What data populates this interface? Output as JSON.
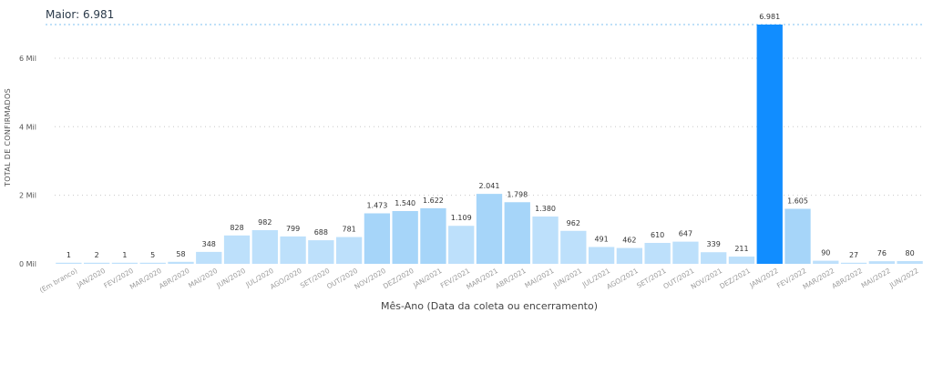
{
  "max_reference": {
    "label": "Maior: 6.981",
    "value": 6981
  },
  "colors": {
    "bar_normal": "#bde0fb",
    "bar_high": "#a6d5f9",
    "bar_max": "#118dff",
    "ref_line": "#bfe0f8"
  },
  "chart_data": {
    "type": "bar",
    "title": "",
    "xlabel": "Mês-Ano (Data da coleta ou encerramento)",
    "ylabel": "TOTAL DE CONFIRMADOS",
    "ylim": [
      0,
      7000
    ],
    "yticks": [
      {
        "value": 0,
        "label": "0 Mil"
      },
      {
        "value": 2000,
        "label": "2 Mil"
      },
      {
        "value": 4000,
        "label": "4 Mil"
      },
      {
        "value": 6000,
        "label": "6 Mil"
      }
    ],
    "grid": true,
    "categories": [
      "(Em branco)",
      "JAN/2020",
      "FEV/2020",
      "MAR/2020",
      "ABR/2020",
      "MAI/2020",
      "JUN/2020",
      "JUL/2020",
      "AGO/2020",
      "SET/2020",
      "OUT/2020",
      "NOV/2020",
      "DEZ/2020",
      "JAN/2021",
      "FEV/2021",
      "MAR/2021",
      "ABR/2021",
      "MAI/2021",
      "JUN/2021",
      "JUL/2021",
      "AGO/2021",
      "SET/2021",
      "OUT/2021",
      "NOV/2021",
      "DEZ/2021",
      "JAN/2022",
      "FEV/2022",
      "MAR/2022",
      "ABR/2022",
      "MAI/2022",
      "JUN/2022"
    ],
    "values": [
      1,
      2,
      1,
      5,
      58,
      348,
      828,
      982,
      799,
      688,
      781,
      1473,
      1540,
      1622,
      1109,
      2041,
      1798,
      1380,
      962,
      491,
      462,
      610,
      647,
      339,
      211,
      6981,
      1605,
      90,
      27,
      76,
      80
    ],
    "data_labels": [
      "1",
      "2",
      "1",
      "5",
      "58",
      "348",
      "828",
      "982",
      "799",
      "688",
      "781",
      "1.473",
      "1.540",
      "1.622",
      "1.109",
      "2.041",
      "1.798",
      "1.380",
      "962",
      "491",
      "462",
      "610",
      "647",
      "339",
      "211",
      "6.981",
      "1.605",
      "90",
      "27",
      "76",
      "80"
    ]
  }
}
